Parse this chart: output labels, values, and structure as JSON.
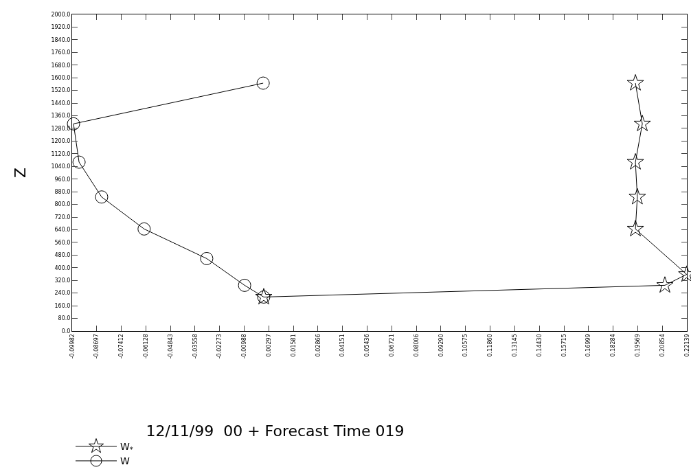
{
  "chart_data": {
    "type": "line",
    "title": "12/11/99  00 + Forecast Time 019",
    "ylabel": "Z",
    "series": [
      {
        "name": "W$_{*}$",
        "color": "#000000",
        "marker": "star",
        "x": [
          0.0003,
          0.2099,
          0.2213,
          0.1945,
          0.1955,
          0.1945,
          0.1981,
          0.1945
        ],
        "values": [
          215,
          289,
          358,
          645,
          847,
          1067,
          1309,
          1566
        ]
      },
      {
        "name": "W",
        "color": "#000000",
        "marker": "circle",
        "x": [
          0.0003,
          -0.0097,
          -0.0295,
          -0.0622,
          -0.0844,
          -0.0962,
          -0.0991,
          0.0
        ],
        "values": [
          215,
          289,
          458,
          645,
          847,
          1067,
          1309,
          1566
        ]
      }
    ],
    "xlim": [
      -0.09982,
      0.22139
    ],
    "xticks": [
      -0.09982,
      -0.08697,
      -0.07412,
      -0.06128,
      -0.04843,
      -0.03558,
      -0.02273,
      -0.00988,
      0.00297,
      0.01581,
      0.02866,
      0.04151,
      0.05436,
      0.06721,
      0.08006,
      {
        "value": 0.0929,
        "label": "0.09290"
      },
      0.10575,
      {
        "value": 0.1186,
        "label": "0.11860"
      },
      0.13145,
      {
        "value": 0.1443,
        "label": "0.14430"
      },
      0.15715,
      0.16999,
      0.18284,
      0.19569,
      0.20854,
      0.22139
    ],
    "ylim": [
      0,
      2000
    ],
    "yticks": [
      {
        "value": 0,
        "label": "0.0"
      },
      {
        "value": 80,
        "label": "80.0"
      },
      {
        "value": 160,
        "label": "160.0"
      },
      {
        "value": 240,
        "label": "240.0"
      },
      {
        "value": 320,
        "label": "320.0"
      },
      {
        "value": 400,
        "label": "400.0"
      },
      {
        "value": 480,
        "label": "480.0"
      },
      {
        "value": 560,
        "label": "560.0"
      },
      {
        "value": 640,
        "label": "640.0"
      },
      {
        "value": 720,
        "label": "720.0"
      },
      {
        "value": 800,
        "label": "800.0"
      },
      {
        "value": 880,
        "label": "880.0"
      },
      {
        "value": 960,
        "label": "960.0"
      },
      {
        "value": 1040,
        "label": "1040.0"
      },
      {
        "value": 1120,
        "label": "1120.0"
      },
      {
        "value": 1200,
        "label": "1200.0"
      },
      {
        "value": 1280,
        "label": "1280.0"
      },
      {
        "value": 1360,
        "label": "1360.0"
      },
      {
        "value": 1440,
        "label": "1440.0"
      },
      {
        "value": 1520,
        "label": "1520.0"
      },
      {
        "value": 1600,
        "label": "1600.0"
      },
      {
        "value": 1680,
        "label": "1680.0"
      },
      {
        "value": 1760,
        "label": "1760.0"
      },
      {
        "value": 1840,
        "label": "1840.0"
      },
      {
        "value": 1920,
        "label": "1920.0"
      },
      {
        "value": 2000,
        "label": "2000.0"
      }
    ],
    "grid": false,
    "legend": "bottom left",
    "line_style": "solid"
  }
}
